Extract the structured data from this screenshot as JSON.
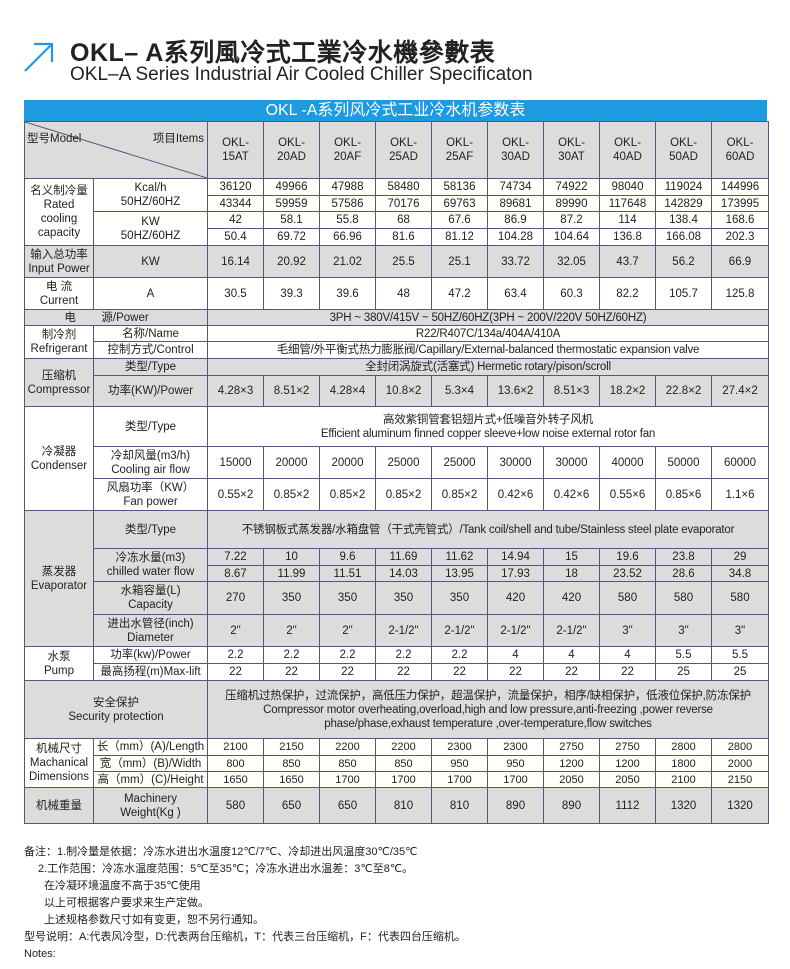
{
  "header": {
    "title": "OKL– A系列風冷式工業冷水機參數表",
    "subtitle": "OKL–A Series Industrial Air Cooled Chiller Specificaton",
    "icon": "arrow-up-right-icon",
    "accent": "#1e9be0"
  },
  "table": {
    "title": "OKL -A系列风冷式工业冷水机参数表",
    "model_label": "型号Model",
    "items_label": "项目Items",
    "models": [
      "OKL-\n15AT",
      "OKL-\n20AD",
      "OKL-\n20AF",
      "OKL-\n25AD",
      "OKL-\n25AF",
      "OKL-\n30AD",
      "OKL-\n30AT",
      "OKL-\n40AD",
      "OKL-\n50AD",
      "OKL-\n60AD"
    ],
    "rows": [
      {
        "shaded": false,
        "cells": [
          {
            "t": "名义制冷量\nRated\ncooling\ncapacity",
            "rs": 4
          },
          {
            "t": "Kcal/h\n50HZ/60HZ",
            "rs": 2
          },
          {
            "v": [
              "36120",
              "49966",
              "47988",
              "58480",
              "58136",
              "74734",
              "74922",
              "98040",
              "119024",
              "144996"
            ]
          }
        ]
      },
      {
        "shaded": false,
        "cells": [
          {
            "v": [
              "43344",
              "59959",
              "57586",
              "70176",
              "69763",
              "89681",
              "89990",
              "117648",
              "142829",
              "173995"
            ]
          }
        ]
      },
      {
        "shaded": false,
        "cells": [
          {
            "t": "KW\n50HZ/60HZ",
            "rs": 2
          },
          {
            "v": [
              "42",
              "58.1",
              "55.8",
              "68",
              "67.6",
              "86.9",
              "87.2",
              "114",
              "138.4",
              "168.6"
            ]
          }
        ]
      },
      {
        "shaded": false,
        "cells": [
          {
            "v": [
              "50.4",
              "69.72",
              "66.96",
              "81.6",
              "81.12",
              "104.28",
              "104.64",
              "136.8",
              "166.08",
              "202.3"
            ]
          }
        ]
      },
      {
        "shaded": true,
        "cells": [
          {
            "t": "输入总功率\nInput Power"
          },
          {
            "t": "KW"
          },
          {
            "v": [
              "16.14",
              "20.92",
              "21.02",
              "25.5",
              "25.1",
              "33.72",
              "32.05",
              "43.7",
              "56.2",
              "66.9"
            ]
          }
        ]
      },
      {
        "shaded": false,
        "cells": [
          {
            "t": "电  流\nCurrent"
          },
          {
            "t": "A"
          },
          {
            "v": [
              "30.5",
              "39.3",
              "39.6",
              "48",
              "47.2",
              "63.4",
              "60.3",
              "82.2",
              "105.7",
              "125.8"
            ]
          }
        ]
      },
      {
        "shaded": true,
        "cells": [
          {
            "t": "            电        源/Power",
            "cs": 2
          },
          {
            "t": "3PH ~ 380V/415V ~ 50HZ/60HZ(3PH ~ 200V/220V   50HZ/60HZ)",
            "cs": 10
          }
        ]
      },
      {
        "shaded": false,
        "cells": [
          {
            "t": "制冷剂\nRefrigerant",
            "rs": 2
          },
          {
            "t": "名称/Name"
          },
          {
            "t": "R22/R407C/134a/404A/410A",
            "cs": 10
          }
        ]
      },
      {
        "shaded": false,
        "cells": [
          {
            "t": "控制方式/Control"
          },
          {
            "t": "毛细管/外平衡式热力膨胀阀/Capillary/External-balanced thermostatic expansion valve",
            "cs": 10
          }
        ]
      },
      {
        "shaded": true,
        "cells": [
          {
            "t": "压缩机\nCompressor",
            "rs": 2
          },
          {
            "t": "类型/Type"
          },
          {
            "t": "全封闭涡旋式(活塞式)          Hermetic rotary/pison/scroll",
            "cs": 10
          }
        ]
      },
      {
        "shaded": true,
        "cells": [
          {
            "t": "功率(KW)/Power"
          },
          {
            "v": [
              "4.28×3",
              "8.51×2",
              "4.28×4",
              "10.8×2",
              "5.3×4",
              "13.6×2",
              "8.51×3",
              "18.2×2",
              "22.8×2",
              "27.4×2"
            ]
          }
        ]
      },
      {
        "shaded": false,
        "cells": [
          {
            "t": "冷凝器\nCondenser",
            "rs": 3
          },
          {
            "t": "类型/Type"
          },
          {
            "t": "高效紫铜管套铝翅片式+低噪音外转子风机\nEfficient aluminum finned copper sleeve+low noise external rotor fan",
            "cs": 10
          }
        ]
      },
      {
        "shaded": false,
        "cells": [
          {
            "t": "冷却风量(m3/h)\nCooling air flow"
          },
          {
            "v": [
              "15000",
              "20000",
              "20000",
              "25000",
              "25000",
              "30000",
              "30000",
              "40000",
              "50000",
              "60000"
            ]
          }
        ]
      },
      {
        "shaded": false,
        "cells": [
          {
            "t": "风扇功率（KW）\nFan power"
          },
          {
            "v": [
              "0.55×2",
              "0.85×2",
              "0.85×2",
              "0.85×2",
              "0.85×2",
              "0.42×6",
              "0.42×6",
              "0.55×6",
              "0.85×6",
              "1.1×6"
            ]
          }
        ]
      },
      {
        "shaded": true,
        "cells": [
          {
            "t": "蒸发器\nEvaporator",
            "rs": 5
          },
          {
            "t": "类型/Type"
          },
          {
            "t": "不锈钢板式蒸发器/水箱盘管（干式壳管式）/Tank coil/shell and tube/Stainless steel plate evaporator",
            "cs": 10
          }
        ]
      },
      {
        "shaded": true,
        "cells": [
          {
            "t": "冷冻水量(m3)\nchilled water flow",
            "rs": 2
          },
          {
            "v": [
              "7.22",
              "10",
              "9.6",
              "11.69",
              "11.62",
              "14.94",
              "15",
              "19.6",
              "23.8",
              "29"
            ]
          }
        ]
      },
      {
        "shaded": true,
        "cells": [
          {
            "v": [
              "8.67",
              "11.99",
              "11.51",
              "14.03",
              "13.95",
              "17.93",
              "18",
              "23.52",
              "28.6",
              "34.8"
            ]
          }
        ]
      },
      {
        "shaded": true,
        "cells": [
          {
            "t": "水箱容量(L)\nCapacity"
          },
          {
            "v": [
              "270",
              "350",
              "350",
              "350",
              "350",
              "420",
              "420",
              "580",
              "580",
              "580"
            ]
          }
        ]
      },
      {
        "shaded": true,
        "cells": [
          {
            "t": "进出水管径(inch)\nDiameter"
          },
          {
            "v": [
              "2\"",
              "2\"",
              "2\"",
              "2-1/2\"",
              "2-1/2\"",
              "2-1/2\"",
              "2-1/2\"",
              "3\"",
              "3\"",
              "3\""
            ]
          }
        ]
      },
      {
        "shaded": false,
        "cells": [
          {
            "t": "水泵\nPump",
            "rs": 2
          },
          {
            "t": "功率(kw)/Power"
          },
          {
            "v": [
              "2.2",
              "2.2",
              "2.2",
              "2.2",
              "2.2",
              "4",
              "4",
              "4",
              "5.5",
              "5.5"
            ]
          }
        ]
      },
      {
        "shaded": false,
        "cells": [
          {
            "t": "最高扬程(m)Max-lift"
          },
          {
            "v": [
              "22",
              "22",
              "22",
              "22",
              "22",
              "22",
              "22",
              "22",
              "25",
              "25"
            ]
          }
        ]
      },
      {
        "shaded": true,
        "cells": [
          {
            "t": "安全保护\nSecurity protection",
            "cs": 2
          },
          {
            "t": "压缩机过热保护，过流保护，高低压力保护，超温保护，流量保护，相序/缺相保护，低液位保护,防冻保护\nCompressor motor overheating,overload,high and low pressure,anti-freezing ,power reverse\nphase/phase,exhaust temperature ,over-temperature,flow switches",
            "cs": 10
          }
        ]
      },
      {
        "shaded": false,
        "cells": [
          {
            "t": "机械尺寸\nMachanical\nDimensions",
            "rs": 3
          },
          {
            "t": "长（mm）(A)/Length"
          },
          {
            "v": [
              "2100",
              "2150",
              "2200",
              "2200",
              "2300",
              "2300",
              "2750",
              "2750",
              "2800",
              "2800"
            ],
            "small": true
          }
        ]
      },
      {
        "shaded": false,
        "cells": [
          {
            "t": "宽（mm）(B)/Width"
          },
          {
            "v": [
              "800",
              "850",
              "850",
              "850",
              "950",
              "950",
              "1200",
              "1200",
              "1800",
              "2000"
            ],
            "small": true
          }
        ]
      },
      {
        "shaded": false,
        "cells": [
          {
            "t": "高（mm）(C)/Height"
          },
          {
            "v": [
              "1650",
              "1650",
              "1700",
              "1700",
              "1700",
              "1700",
              "2050",
              "2050",
              "2100",
              "2150"
            ],
            "small": true
          }
        ]
      },
      {
        "shaded": true,
        "cells": [
          {
            "t": "机械重量"
          },
          {
            "t": "Machinery\nWeight(Kg )"
          },
          {
            "v": [
              "580",
              "650",
              "650",
              "810",
              "810",
              "890",
              "890",
              "1112",
              "1320",
              "1320"
            ]
          }
        ]
      }
    ]
  },
  "notes": {
    "lines": [
      "备注：1.制冷量是依据：冷冻水进出水温度12℃/7℃、冷却进出风温度30℃/35℃",
      "2.工作范围：冷冻水温度范围：5℃至35℃；冷冻水进出水温差：3℃至8℃。",
      "在冷凝环境温度不高于35℃使用",
      "以上可根据客户要求来生产定做。",
      "上述规格参数尺寸如有变更，恕不另行通知。",
      "型号说明：A:代表风冷型，D:代表两台压缩机，T：代表三台压缩机，F：代表四台压缩机。",
      "Notes:"
    ]
  }
}
